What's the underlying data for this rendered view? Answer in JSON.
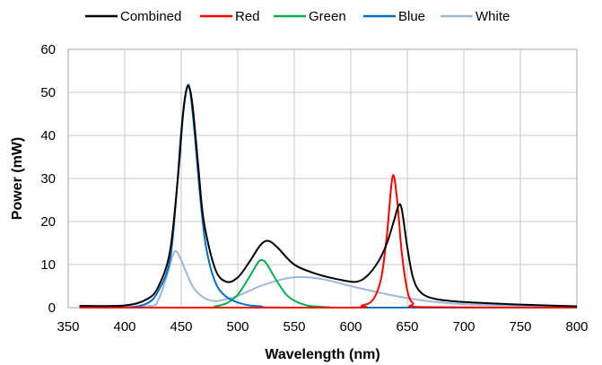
{
  "chart_data": {
    "type": "line",
    "title": "",
    "xlabel": "Wavelength (nm)",
    "ylabel": "Power (mW)",
    "xlim": [
      350,
      800
    ],
    "ylim": [
      0,
      60
    ],
    "xticks": [
      350,
      400,
      450,
      500,
      550,
      600,
      650,
      700,
      750,
      800
    ],
    "yticks": [
      0,
      10,
      20,
      30,
      40,
      50,
      60
    ],
    "grid": true,
    "legend_position": "top",
    "series": [
      {
        "name": "Combined",
        "color": "#000000",
        "points": [
          [
            360,
            0.4
          ],
          [
            400,
            0.5
          ],
          [
            420,
            2
          ],
          [
            430,
            5
          ],
          [
            440,
            13
          ],
          [
            447,
            30
          ],
          [
            452,
            46
          ],
          [
            456,
            51.5
          ],
          [
            460,
            47
          ],
          [
            465,
            33
          ],
          [
            470,
            20
          ],
          [
            480,
            9
          ],
          [
            490,
            6
          ],
          [
            500,
            7
          ],
          [
            510,
            10.5
          ],
          [
            520,
            14.5
          ],
          [
            527,
            15.5
          ],
          [
            535,
            14
          ],
          [
            550,
            10
          ],
          [
            570,
            7.8
          ],
          [
            590,
            6.5
          ],
          [
            605,
            6
          ],
          [
            615,
            7.5
          ],
          [
            625,
            11
          ],
          [
            632,
            15
          ],
          [
            638,
            20
          ],
          [
            642,
            23.5
          ],
          [
            645,
            23
          ],
          [
            650,
            14
          ],
          [
            655,
            7
          ],
          [
            662,
            3.5
          ],
          [
            675,
            2
          ],
          [
            700,
            1.3
          ],
          [
            750,
            0.7
          ],
          [
            800,
            0.3
          ]
        ]
      },
      {
        "name": "Red",
        "color": "#ff0000",
        "points": [
          [
            360,
            0
          ],
          [
            590,
            0
          ],
          [
            610,
            0.5
          ],
          [
            620,
            2
          ],
          [
            627,
            7
          ],
          [
            632,
            17
          ],
          [
            637,
            30.5
          ],
          [
            641,
            25
          ],
          [
            645,
            13
          ],
          [
            650,
            4
          ],
          [
            655,
            1
          ],
          [
            665,
            0.1
          ],
          [
            800,
            0
          ]
        ]
      },
      {
        "name": "Green",
        "color": "#00b050",
        "points": [
          [
            360,
            0
          ],
          [
            470,
            0
          ],
          [
            480,
            0.3
          ],
          [
            490,
            1
          ],
          [
            500,
            3
          ],
          [
            510,
            7
          ],
          [
            518,
            10.5
          ],
          [
            522,
            11
          ],
          [
            526,
            10
          ],
          [
            535,
            6
          ],
          [
            545,
            2.5
          ],
          [
            560,
            0.6
          ],
          [
            580,
            0.1
          ],
          [
            600,
            0
          ],
          [
            800,
            0
          ]
        ]
      },
      {
        "name": "Blue",
        "color": "#0070c0",
        "points": [
          [
            360,
            0
          ],
          [
            400,
            0
          ],
          [
            420,
            1
          ],
          [
            430,
            4
          ],
          [
            440,
            11
          ],
          [
            446,
            27
          ],
          [
            450,
            41
          ],
          [
            455,
            51
          ],
          [
            458,
            50
          ],
          [
            462,
            40
          ],
          [
            467,
            25
          ],
          [
            472,
            14
          ],
          [
            480,
            6
          ],
          [
            490,
            2.5
          ],
          [
            505,
            0.8
          ],
          [
            520,
            0.3
          ],
          [
            550,
            0
          ],
          [
            800,
            0
          ]
        ]
      },
      {
        "name": "White",
        "color": "#9bb7d9",
        "points": [
          [
            360,
            0
          ],
          [
            420,
            0.3
          ],
          [
            430,
            2
          ],
          [
            438,
            8
          ],
          [
            443,
            12.5
          ],
          [
            446,
            13
          ],
          [
            450,
            11
          ],
          [
            460,
            5
          ],
          [
            470,
            2.3
          ],
          [
            480,
            1.5
          ],
          [
            490,
            2
          ],
          [
            500,
            2.7
          ],
          [
            520,
            5
          ],
          [
            540,
            6.6
          ],
          [
            555,
            7.1
          ],
          [
            575,
            6.6
          ],
          [
            600,
            5
          ],
          [
            625,
            3.5
          ],
          [
            650,
            2.2
          ],
          [
            675,
            1.3
          ],
          [
            700,
            0.8
          ],
          [
            750,
            0.4
          ],
          [
            800,
            0.2
          ]
        ]
      }
    ]
  }
}
